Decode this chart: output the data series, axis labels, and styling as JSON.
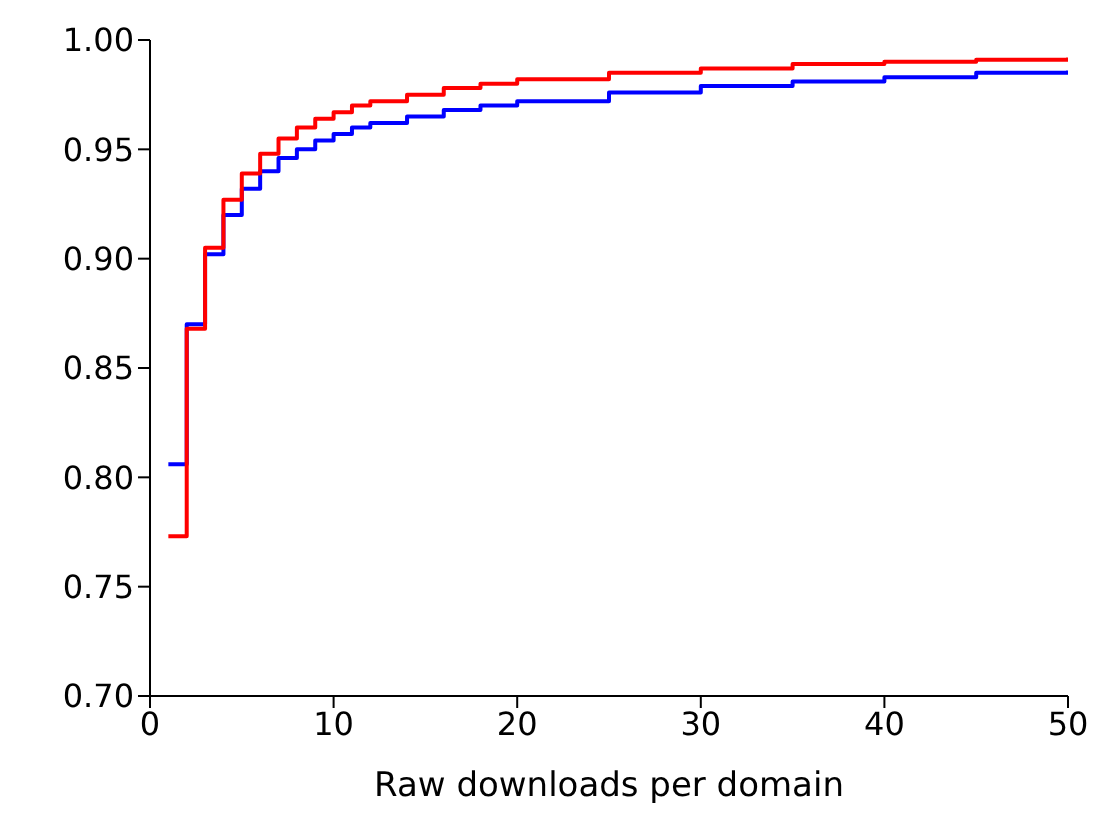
{
  "chart_data": {
    "type": "step",
    "xlabel": "Raw downloads per domain",
    "x": [
      1,
      2,
      3,
      4,
      5,
      6,
      7,
      8,
      9,
      10,
      11,
      12,
      14,
      16,
      18,
      20,
      25,
      30,
      35,
      40,
      45,
      50
    ],
    "series": [
      {
        "color": "#0000ff",
        "values": [
          0.806,
          0.87,
          0.902,
          0.92,
          0.932,
          0.94,
          0.946,
          0.95,
          0.954,
          0.957,
          0.96,
          0.962,
          0.965,
          0.968,
          0.97,
          0.972,
          0.976,
          0.979,
          0.981,
          0.983,
          0.985,
          0.986
        ]
      },
      {
        "color": "#ff0000",
        "values": [
          0.773,
          0.868,
          0.905,
          0.927,
          0.939,
          0.948,
          0.955,
          0.96,
          0.964,
          0.967,
          0.97,
          0.972,
          0.975,
          0.978,
          0.98,
          0.982,
          0.985,
          0.987,
          0.989,
          0.99,
          0.991,
          0.992
        ]
      }
    ],
    "xlim": [
      0,
      50
    ],
    "xticks": [
      0,
      10,
      20,
      30,
      40,
      50
    ],
    "ylim": [
      0.7,
      1.0
    ],
    "yticks": [
      {
        "value": 0.7,
        "label": "0.70"
      },
      0.75,
      {
        "value": 0.8,
        "label": "0.80"
      },
      0.85,
      {
        "value": 0.9,
        "label": "0.90"
      },
      0.95,
      {
        "value": 1,
        "label": "1.00"
      }
    ],
    "grid": false,
    "legend": false
  }
}
